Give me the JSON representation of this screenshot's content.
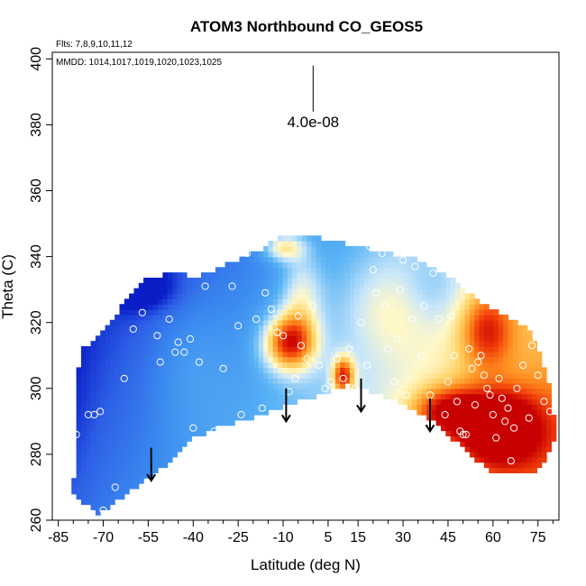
{
  "chart_data": {
    "type": "heatmap",
    "title": "ATOM3 Northbound CO_GEOS5",
    "subtitle_flights": "Flts: 7,8,9,10,11,12",
    "subtitle_dates": "MMDD: 1014,1017,1019,1020,1023,1025",
    "xlabel": "Latitude (deg N)",
    "ylabel": "Theta (C)",
    "xlim": [
      -87,
      82
    ],
    "ylim": [
      260,
      402
    ],
    "xticks": [
      -85,
      -70,
      -55,
      -40,
      -25,
      -10,
      5,
      15,
      30,
      45,
      60,
      75
    ],
    "xtick_labels": [
      "-85",
      "-70",
      "-55",
      "-40",
      "-25",
      "-10",
      "5",
      "15",
      "30",
      "45",
      "60",
      "75"
    ],
    "yticks": [
      260,
      280,
      300,
      320,
      340,
      360,
      380,
      400
    ],
    "ytick_labels": [
      "260",
      "280",
      "300",
      "320",
      "340",
      "360",
      "380",
      "400"
    ],
    "scale_bar": {
      "label": "4.0e-08",
      "x": 0,
      "y_top": 398,
      "y_bottom": 384
    },
    "tropopause_arrows": [
      {
        "lat": -54,
        "theta": 282
      },
      {
        "lat": -9,
        "theta": 300
      },
      {
        "lat": 16,
        "theta": 303
      },
      {
        "lat": 39,
        "theta": 297
      }
    ],
    "boundary": {
      "upper": [
        [
          -78,
          311
        ],
        [
          -74,
          314
        ],
        [
          -68,
          320
        ],
        [
          -62,
          327
        ],
        [
          -56,
          333
        ],
        [
          -48,
          335
        ],
        [
          -38,
          334
        ],
        [
          -28,
          338
        ],
        [
          -18,
          342
        ],
        [
          -10,
          347
        ],
        [
          -3,
          347
        ],
        [
          5,
          345
        ],
        [
          15,
          343
        ],
        [
          25,
          341
        ],
        [
          35,
          339
        ],
        [
          45,
          334
        ],
        [
          55,
          327
        ],
        [
          65,
          322
        ],
        [
          72,
          318
        ],
        [
          78,
          305
        ],
        [
          81,
          288
        ]
      ],
      "lower": [
        [
          81,
          285
        ],
        [
          75,
          275
        ],
        [
          60,
          274
        ],
        [
          50,
          282
        ],
        [
          40,
          290
        ],
        [
          30,
          295
        ],
        [
          20,
          299
        ],
        [
          12,
          301
        ],
        [
          5,
          299
        ],
        [
          -5,
          296
        ],
        [
          -20,
          291
        ],
        [
          -32,
          288
        ],
        [
          -40,
          285
        ],
        [
          -50,
          276
        ],
        [
          -65,
          266
        ],
        [
          -72,
          262
        ],
        [
          -80,
          268
        ]
      ]
    },
    "colorscale": [
      [
        0.0,
        "#0a1ec8"
      ],
      [
        0.12,
        "#2d5fe6"
      ],
      [
        0.25,
        "#3c8cf0"
      ],
      [
        0.38,
        "#5ab4f5"
      ],
      [
        0.5,
        "#c8e6fa"
      ],
      [
        0.58,
        "#fff8c8"
      ],
      [
        0.68,
        "#ffd264"
      ],
      [
        0.8,
        "#ff8c1e"
      ],
      [
        0.9,
        "#f03c0a"
      ],
      [
        1.0,
        "#c80000"
      ]
    ],
    "intensity_field": {
      "base": {
        "lat_coef": 0.0045,
        "theta_coef": -0.0025,
        "offset": 0.42
      },
      "bumps": [
        {
          "lat": -8,
          "theta": 314,
          "amp": 0.58,
          "slat": 6,
          "stheta": 6
        },
        {
          "lat": 62,
          "theta": 288,
          "amp": 0.55,
          "slat": 10,
          "stheta": 8
        },
        {
          "lat": 45,
          "theta": 293,
          "amp": 0.38,
          "slat": 8,
          "stheta": 5
        },
        {
          "lat": 10,
          "theta": 304,
          "amp": 0.5,
          "slat": 2.5,
          "stheta": 4
        },
        {
          "lat": 58,
          "theta": 318,
          "amp": 0.32,
          "slat": 6,
          "stheta": 8
        },
        {
          "lat": -10,
          "theta": 343,
          "amp": 0.32,
          "slat": 5,
          "stheta": 3
        },
        {
          "lat": -4,
          "theta": 328,
          "amp": 0.22,
          "slat": 5,
          "stheta": 10
        },
        {
          "lat": 25,
          "theta": 325,
          "amp": 0.12,
          "slat": 10,
          "stheta": 10
        },
        {
          "lat": -57,
          "theta": 331,
          "amp": -0.25,
          "slat": 8,
          "stheta": 5
        },
        {
          "lat": -82,
          "theta": 300,
          "amp": -0.05,
          "slat": 6,
          "stheta": 25
        },
        {
          "lat": -42,
          "theta": 308,
          "amp": 0.08,
          "slat": 10,
          "stheta": 15
        },
        {
          "lat": 40,
          "theta": 330,
          "amp": -0.1,
          "slat": 8,
          "stheta": 8
        }
      ]
    },
    "observations": [
      [
        -85,
        296
      ],
      [
        -81,
        311
      ],
      [
        -79,
        286
      ],
      [
        -75,
        292
      ],
      [
        -73,
        292
      ],
      [
        -71,
        293
      ],
      [
        -70,
        263
      ],
      [
        -66,
        270
      ],
      [
        -63,
        303
      ],
      [
        -60,
        318
      ],
      [
        -57,
        323
      ],
      [
        -52,
        316
      ],
      [
        -51,
        308
      ],
      [
        -48,
        321
      ],
      [
        -46,
        311
      ],
      [
        -45,
        314
      ],
      [
        -43,
        311
      ],
      [
        -41,
        315
      ],
      [
        -40,
        288
      ],
      [
        -38,
        308
      ],
      [
        -36,
        331
      ],
      [
        -33,
        287
      ],
      [
        -30,
        306
      ],
      [
        -27,
        331
      ],
      [
        -25,
        319
      ],
      [
        -24,
        292
      ],
      [
        -22,
        341
      ],
      [
        -19,
        321
      ],
      [
        -17,
        294
      ],
      [
        -16,
        329
      ],
      [
        -14,
        324
      ],
      [
        -12,
        317
      ],
      [
        -10,
        316
      ],
      [
        -8,
        299
      ],
      [
        -6,
        303
      ],
      [
        -5,
        322
      ],
      [
        -4,
        313
      ],
      [
        -2,
        309
      ],
      [
        0,
        325
      ],
      [
        2,
        307
      ],
      [
        4,
        300
      ],
      [
        6,
        302
      ],
      [
        8,
        309
      ],
      [
        10,
        303
      ],
      [
        12,
        312
      ],
      [
        14,
        300
      ],
      [
        16,
        320
      ],
      [
        18,
        307
      ],
      [
        19,
        343
      ],
      [
        20,
        336
      ],
      [
        21,
        329
      ],
      [
        23,
        341
      ],
      [
        24,
        325
      ],
      [
        25,
        312
      ],
      [
        27,
        302
      ],
      [
        28,
        315
      ],
      [
        29,
        330
      ],
      [
        30,
        339
      ],
      [
        31,
        298
      ],
      [
        33,
        321
      ],
      [
        34,
        337
      ],
      [
        36,
        310
      ],
      [
        37,
        325
      ],
      [
        39,
        298
      ],
      [
        40,
        335
      ],
      [
        42,
        321
      ],
      [
        44,
        292
      ],
      [
        45,
        302
      ],
      [
        46,
        322
      ],
      [
        47,
        310
      ],
      [
        48,
        296
      ],
      [
        49,
        287
      ],
      [
        50,
        286
      ],
      [
        51,
        286
      ],
      [
        52,
        312
      ],
      [
        53,
        306
      ],
      [
        54,
        295
      ],
      [
        55,
        308
      ],
      [
        56,
        310
      ],
      [
        57,
        304
      ],
      [
        58,
        300
      ],
      [
        59,
        298
      ],
      [
        60,
        292
      ],
      [
        61,
        285
      ],
      [
        62,
        303
      ],
      [
        63,
        297
      ],
      [
        64,
        290
      ],
      [
        65,
        294
      ],
      [
        66,
        278
      ],
      [
        67,
        288
      ],
      [
        68,
        300
      ],
      [
        70,
        307
      ],
      [
        72,
        291
      ],
      [
        73,
        313
      ],
      [
        75,
        304
      ],
      [
        77,
        296
      ],
      [
        79,
        293
      ],
      [
        80,
        310
      ]
    ]
  }
}
